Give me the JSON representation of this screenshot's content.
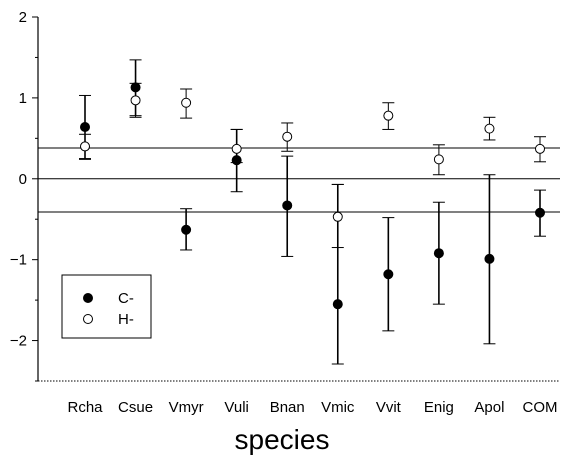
{
  "chart_data": {
    "type": "scatter",
    "title": "",
    "xlabel": "species",
    "ylabel": "",
    "categories": [
      "Rcha",
      "Csue",
      "Vmyr",
      "Vuli",
      "Bnan",
      "Vmic",
      "Vvit",
      "Enig",
      "Apol",
      "COM"
    ],
    "ylim": [
      -2.5,
      2
    ],
    "yticks": [
      -2,
      -1,
      0,
      1,
      2
    ],
    "grid": false,
    "reference_lines": [
      0.38,
      0,
      -0.41
    ],
    "legend": {
      "position": "bottom-left",
      "entries": [
        "C-",
        "H-"
      ]
    },
    "series": [
      {
        "name": "C-",
        "marker": "filled-circle",
        "values": [
          0.64,
          1.13,
          -0.63,
          0.23,
          -0.33,
          -1.55,
          -1.18,
          -0.92,
          -0.99,
          -0.42
        ],
        "err_low": [
          0.24,
          0.78,
          -0.88,
          -0.16,
          -0.96,
          -2.29,
          -1.88,
          -1.55,
          -2.04,
          -0.71
        ],
        "err_high": [
          1.03,
          1.47,
          -0.37,
          0.61,
          0.28,
          -0.07,
          -0.48,
          -0.29,
          0.05,
          -0.14
        ]
      },
      {
        "name": "H-",
        "marker": "open-circle",
        "values": [
          0.4,
          0.97,
          0.94,
          0.37,
          0.52,
          -0.47,
          0.78,
          0.24,
          0.62,
          0.37
        ],
        "err_low": [
          0.25,
          0.76,
          0.75,
          0.2,
          0.34,
          -0.85,
          0.61,
          0.05,
          0.48,
          0.21
        ],
        "err_high": [
          0.55,
          1.18,
          1.11,
          0.61,
          0.69,
          -0.07,
          0.94,
          0.42,
          0.76,
          0.52
        ]
      }
    ],
    "colors": {
      "axis": "#000000",
      "marker_fill": "#000000",
      "marker_open": "#ffffff"
    }
  }
}
